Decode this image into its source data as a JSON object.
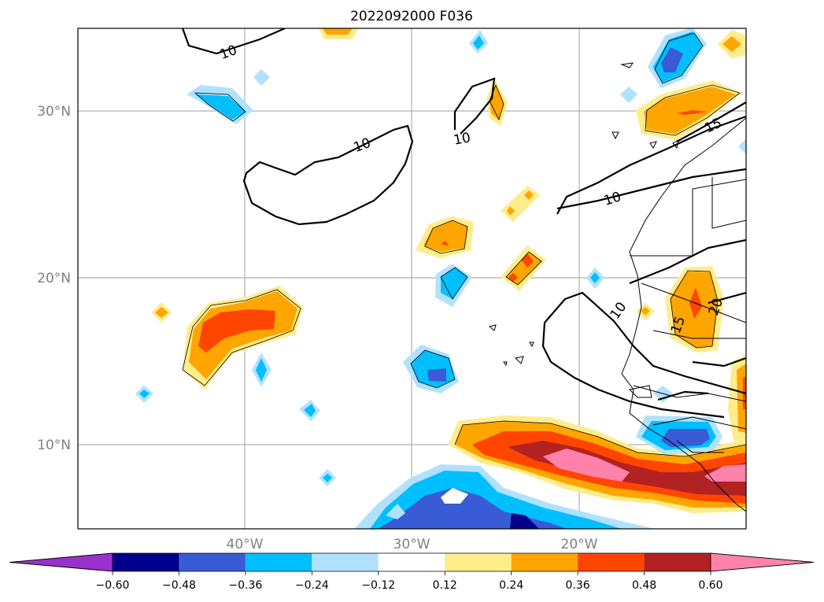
{
  "title": "2022092000 F036",
  "map": {
    "lat_labels": [
      "30°N",
      "20°N",
      "10°N"
    ],
    "lon_labels": [
      "40°W",
      "30°W",
      "20°W"
    ],
    "contour_labels": [
      "10",
      "10",
      "10",
      "10",
      "15",
      "10",
      "15",
      "20"
    ]
  },
  "colorbar": {
    "ticks": [
      "−0.60",
      "−0.48",
      "−0.36",
      "−0.24",
      "−0.12",
      "0.12",
      "0.24",
      "0.36",
      "0.48",
      "0.60"
    ],
    "colors": [
      "#9932cc",
      "#00008b",
      "#3a5bd6",
      "#00bfff",
      "#b0e2ff",
      "#ffffff",
      "#ffec8b",
      "#ffa500",
      "#ff4500",
      "#b22222",
      "#ff82ab"
    ]
  }
}
